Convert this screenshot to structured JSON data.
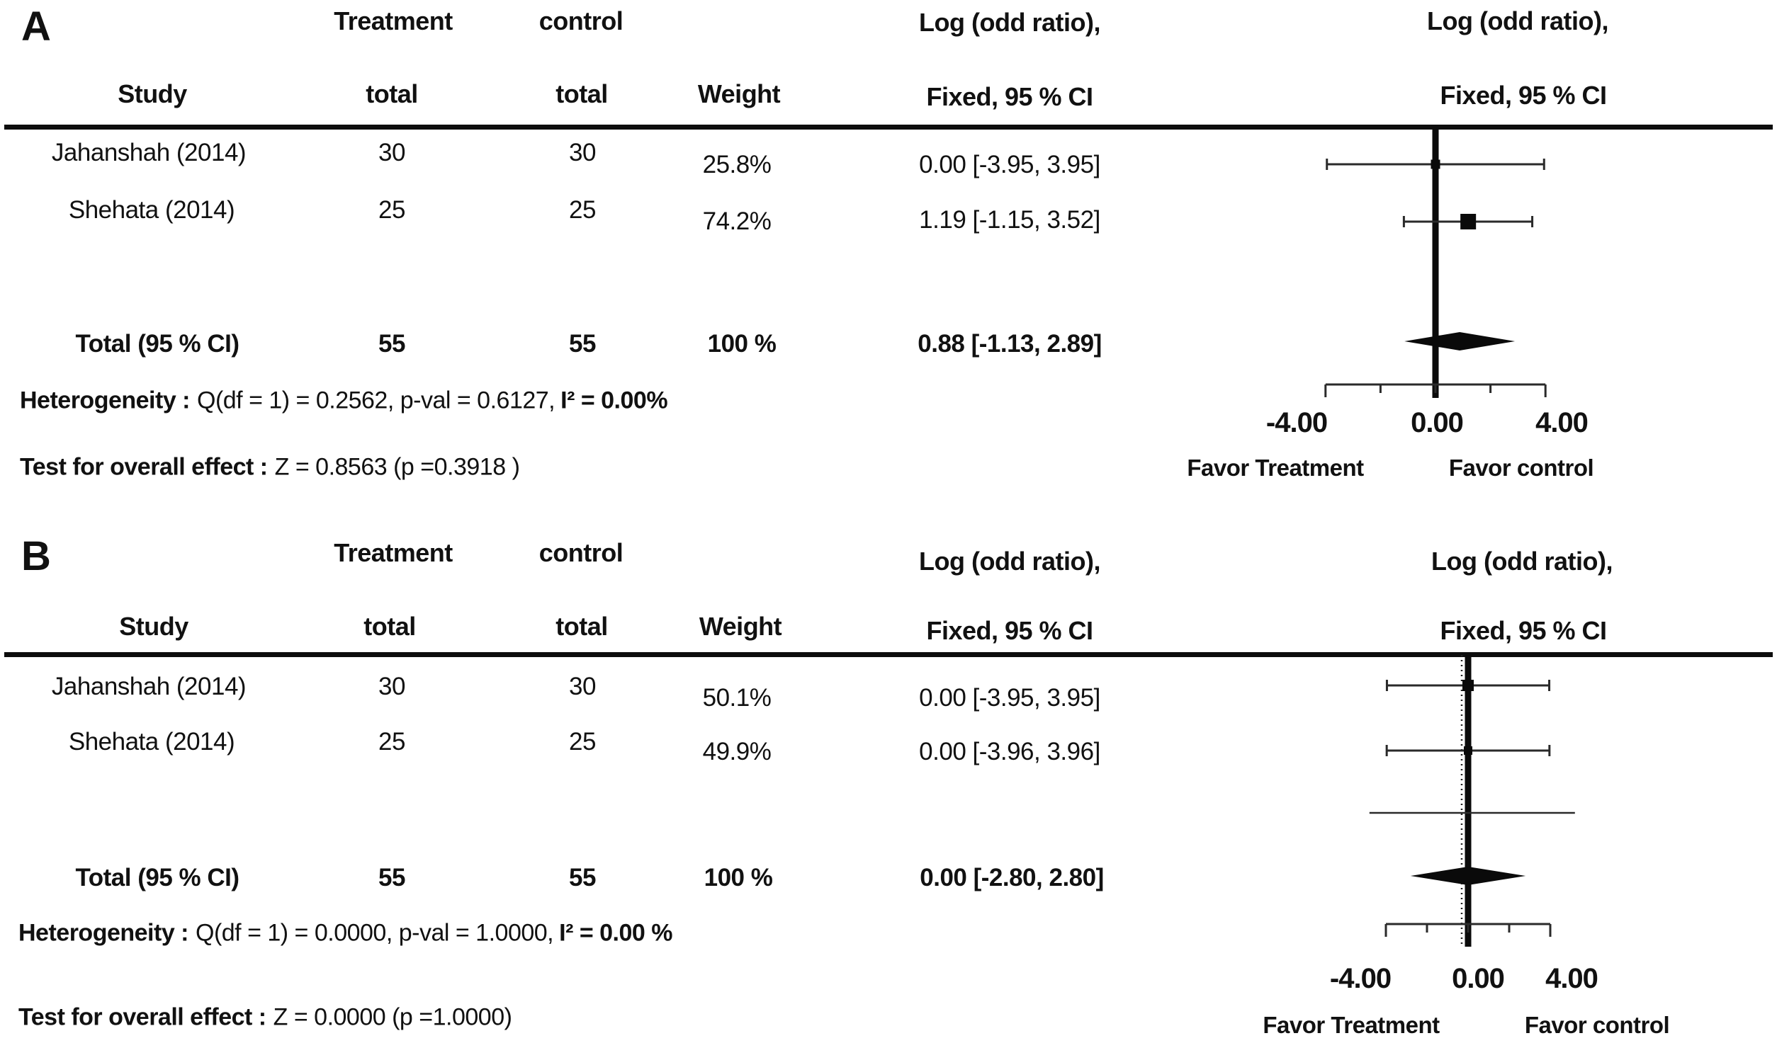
{
  "panels": [
    {
      "label": "A",
      "columns": {
        "group1": "Treatment",
        "group2": "control",
        "study": "Study",
        "total1": "total",
        "total2": "total",
        "weight": "Weight",
        "effect1": "Log (odd ratio),",
        "effect2": "Fixed, 95 % CI"
      },
      "plot_header": {
        "line1": "Log (odd ratio),",
        "line2": "Fixed, 95 % CI"
      },
      "rows": [
        {
          "study": "Jahanshah (2014)",
          "treatment_total": "30",
          "control_total": "30",
          "weight": "25.8%",
          "ci": "0.00 [-3.95, 3.95]"
        },
        {
          "study": "Shehata (2014)",
          "treatment_total": "25",
          "control_total": "25",
          "weight": "74.2%",
          "ci": "1.19 [-1.15, 3.52]"
        }
      ],
      "total_row": {
        "label": "Total (95 % CI)",
        "treatment_total": "55",
        "control_total": "55",
        "weight": "100 %",
        "ci": "0.88 [-1.13, 2.89]"
      },
      "heterogeneity": {
        "label": "Heterogeneity :",
        "stats": "Q(df = 1) = 0.2562, p-val = 0.6127,",
        "i2": "I² = 0.00%"
      },
      "overall_effect": {
        "label": "Test for overall effect :",
        "stats": "Z = 0.8563 (p =0.3918 )"
      },
      "axis": {
        "label_left": "-4.00",
        "label_mid": "0.00",
        "label_right": "4.00",
        "favor_left": "Favor Treatment",
        "favor_right": "Favor control"
      }
    },
    {
      "label": "B",
      "columns": {
        "group1": "Treatment",
        "group2": "control",
        "study": "Study",
        "total1": "total",
        "total2": "total",
        "weight": "Weight",
        "effect1": "Log (odd ratio),",
        "effect2": "Fixed, 95 % CI"
      },
      "plot_header": {
        "line1": "Log (odd ratio),",
        "line2": "Fixed, 95 % CI"
      },
      "rows": [
        {
          "study": "Jahanshah (2014)",
          "treatment_total": "30",
          "control_total": "30",
          "weight": "50.1%",
          "ci": "0.00 [-3.95, 3.95]"
        },
        {
          "study": "Shehata (2014)",
          "treatment_total": "25",
          "control_total": "25",
          "weight": "49.9%",
          "ci": "0.00 [-3.96, 3.96]"
        }
      ],
      "total_row": {
        "label": "Total (95 % CI)",
        "treatment_total": "55",
        "control_total": "55",
        "weight": "100 %",
        "ci": "0.00 [-2.80, 2.80]"
      },
      "heterogeneity": {
        "label": "Heterogeneity :",
        "stats": "Q(df = 1) = 0.0000, p-val = 1.0000,",
        "i2": "I² = 0.00 %"
      },
      "overall_effect": {
        "label": "Test for overall effect :",
        "stats": "Z = 0.0000 (p =1.0000)"
      },
      "axis": {
        "label_left": "-4.00",
        "label_mid": "0.00",
        "label_right": "4.00",
        "favor_left": "Favor Treatment",
        "favor_right": "Favor control"
      }
    }
  ],
  "chart_data": [
    {
      "type": "forest",
      "panel": "A",
      "effect_measure": "Log (odd ratio), Fixed, 95 % CI",
      "model": "Fixed",
      "xlim": [
        -4,
        4
      ],
      "axis_ticks": [
        -4,
        -2,
        0,
        2,
        4
      ],
      "axis_tick_labels": [
        "-4.00",
        "0.00",
        "4.00"
      ],
      "studies": [
        {
          "name": "Jahanshah (2014)",
          "estimate": 0.0,
          "ci_lower": -3.95,
          "ci_upper": 3.95,
          "weight_pct": 25.8
        },
        {
          "name": "Shehata (2014)",
          "estimate": 1.19,
          "ci_lower": -1.15,
          "ci_upper": 3.52,
          "weight_pct": 74.2
        }
      ],
      "total": {
        "estimate": 0.88,
        "ci_lower": -1.13,
        "ci_upper": 2.89,
        "weight_pct": 100
      },
      "heterogeneity": {
        "Q": 0.2562,
        "df": 1,
        "p": 0.6127,
        "I2_pct": 0.0
      },
      "overall_test": {
        "Z": 0.8563,
        "p": 0.3918
      },
      "favor_left": "Favor Treatment",
      "favor_right": "Favor control"
    },
    {
      "type": "forest",
      "panel": "B",
      "effect_measure": "Log (odd ratio), Fixed, 95 % CI",
      "model": "Fixed",
      "xlim": [
        -4,
        4
      ],
      "axis_ticks": [
        -4,
        -2,
        0,
        2,
        4
      ],
      "axis_tick_labels": [
        "-4.00",
        "0.00",
        "4.00"
      ],
      "summary_ref_line": 0.0,
      "studies": [
        {
          "name": "Jahanshah (2014)",
          "estimate": 0.0,
          "ci_lower": -3.95,
          "ci_upper": 3.95,
          "weight_pct": 50.1
        },
        {
          "name": "Shehata (2014)",
          "estimate": 0.0,
          "ci_lower": -3.96,
          "ci_upper": 3.96,
          "weight_pct": 49.9
        }
      ],
      "extra_line": {
        "lo": -4.8,
        "hi": 5.2
      },
      "total": {
        "estimate": 0.0,
        "ci_lower": -2.8,
        "ci_upper": 2.8,
        "weight_pct": 100
      },
      "heterogeneity": {
        "Q": 0.0,
        "df": 1,
        "p": 1.0,
        "I2_pct": 0.0
      },
      "overall_test": {
        "Z": 0.0,
        "p": 1.0
      },
      "favor_left": "Favor Treatment",
      "favor_right": "Favor control"
    }
  ]
}
